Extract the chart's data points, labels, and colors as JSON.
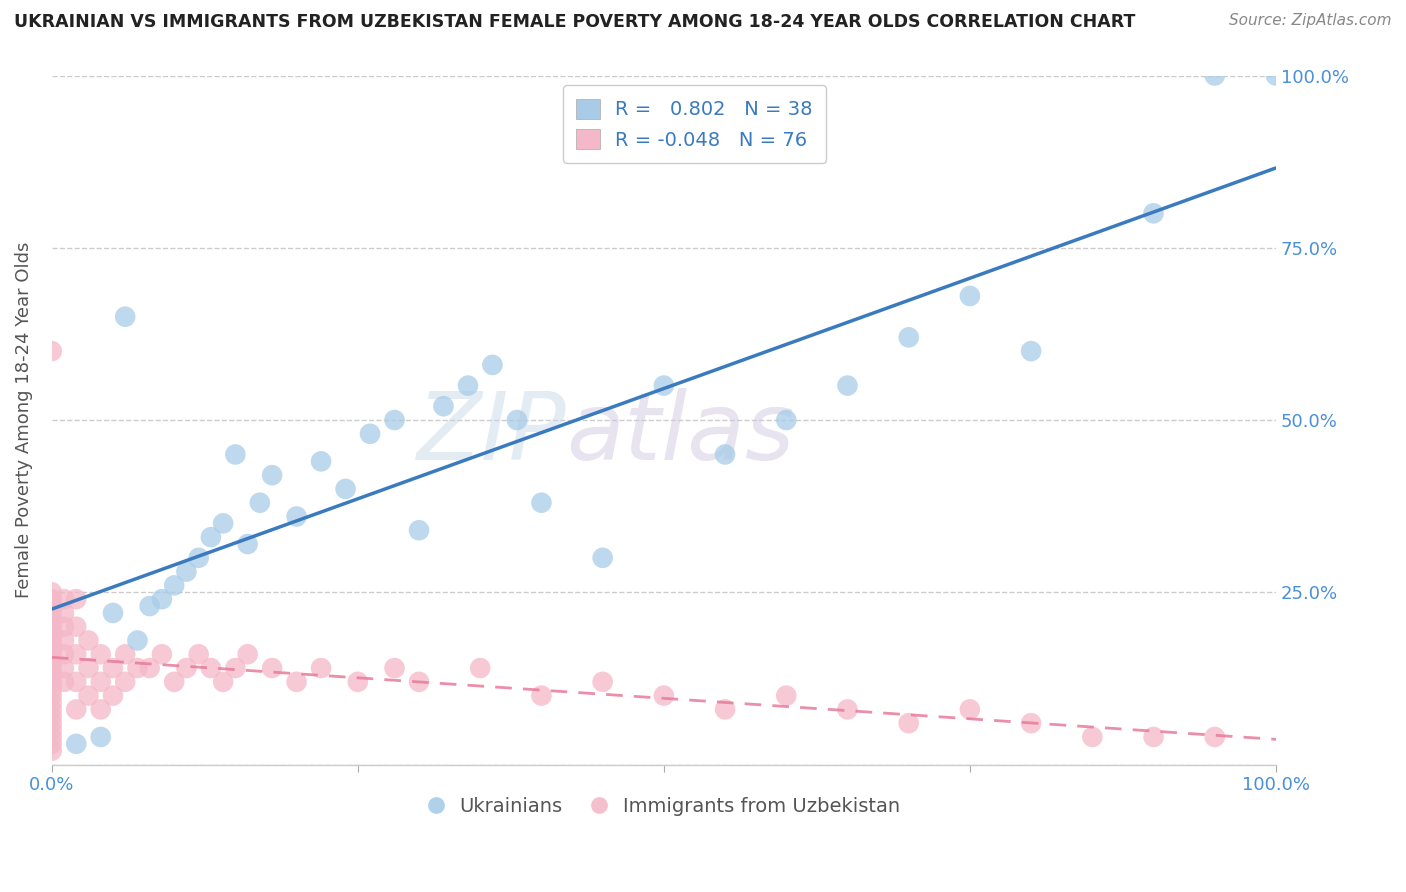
{
  "title": "UKRAINIAN VS IMMIGRANTS FROM UZBEKISTAN FEMALE POVERTY AMONG 18-24 YEAR OLDS CORRELATION CHART",
  "source": "Source: ZipAtlas.com",
  "ylabel": "Female Poverty Among 18-24 Year Olds",
  "r_blue": 0.802,
  "n_blue": 38,
  "r_pink": -0.048,
  "n_pink": 76,
  "watermark_zip": "ZIP",
  "watermark_atlas": "atlas",
  "blue_label": "Ukrainians",
  "pink_label": "Immigrants from Uzbekistan",
  "blue_color": "#a8cce8",
  "pink_color": "#f4b8c8",
  "blue_line_color": "#3a7abf",
  "pink_line_color": "#e87a9a",
  "background_color": "#ffffff",
  "grid_color": "#cccccc",
  "blue_x": [
    0.02,
    0.04,
    0.05,
    0.06,
    0.07,
    0.08,
    0.09,
    0.1,
    0.11,
    0.12,
    0.13,
    0.14,
    0.15,
    0.16,
    0.17,
    0.18,
    0.2,
    0.22,
    0.24,
    0.26,
    0.28,
    0.3,
    0.32,
    0.34,
    0.36,
    0.38,
    0.4,
    0.45,
    0.5,
    0.55,
    0.6,
    0.65,
    0.7,
    0.75,
    0.8,
    0.9,
    0.95,
    1.0
  ],
  "blue_y": [
    0.03,
    0.04,
    0.22,
    0.65,
    0.18,
    0.23,
    0.24,
    0.26,
    0.28,
    0.3,
    0.33,
    0.35,
    0.45,
    0.32,
    0.38,
    0.42,
    0.36,
    0.44,
    0.4,
    0.48,
    0.5,
    0.34,
    0.52,
    0.55,
    0.58,
    0.5,
    0.38,
    0.3,
    0.55,
    0.45,
    0.5,
    0.55,
    0.62,
    0.68,
    0.6,
    0.8,
    1.0,
    1.0
  ],
  "pink_x": [
    0.0,
    0.0,
    0.0,
    0.0,
    0.0,
    0.0,
    0.0,
    0.0,
    0.0,
    0.0,
    0.0,
    0.0,
    0.0,
    0.0,
    0.0,
    0.0,
    0.0,
    0.0,
    0.0,
    0.0,
    0.0,
    0.0,
    0.0,
    0.0,
    0.0,
    0.01,
    0.01,
    0.01,
    0.01,
    0.01,
    0.01,
    0.01,
    0.02,
    0.02,
    0.02,
    0.02,
    0.02,
    0.03,
    0.03,
    0.03,
    0.04,
    0.04,
    0.04,
    0.05,
    0.05,
    0.06,
    0.06,
    0.07,
    0.08,
    0.09,
    0.1,
    0.11,
    0.12,
    0.13,
    0.14,
    0.15,
    0.16,
    0.18,
    0.2,
    0.22,
    0.25,
    0.28,
    0.3,
    0.35,
    0.4,
    0.45,
    0.5,
    0.55,
    0.6,
    0.65,
    0.7,
    0.75,
    0.8,
    0.85,
    0.9,
    0.95
  ],
  "pink_y": [
    0.02,
    0.03,
    0.04,
    0.05,
    0.06,
    0.07,
    0.08,
    0.09,
    0.1,
    0.11,
    0.12,
    0.13,
    0.14,
    0.15,
    0.16,
    0.17,
    0.18,
    0.19,
    0.2,
    0.21,
    0.22,
    0.23,
    0.24,
    0.25,
    0.6,
    0.12,
    0.14,
    0.16,
    0.18,
    0.2,
    0.22,
    0.24,
    0.08,
    0.12,
    0.16,
    0.2,
    0.24,
    0.1,
    0.14,
    0.18,
    0.08,
    0.12,
    0.16,
    0.1,
    0.14,
    0.12,
    0.16,
    0.14,
    0.14,
    0.16,
    0.12,
    0.14,
    0.16,
    0.14,
    0.12,
    0.14,
    0.16,
    0.14,
    0.12,
    0.14,
    0.12,
    0.14,
    0.12,
    0.14,
    0.1,
    0.12,
    0.1,
    0.08,
    0.1,
    0.08,
    0.06,
    0.08,
    0.06,
    0.04,
    0.04,
    0.04
  ],
  "tick_color": "#4a90d9",
  "label_color": "#555555",
  "title_color": "#222222",
  "source_color": "#888888"
}
